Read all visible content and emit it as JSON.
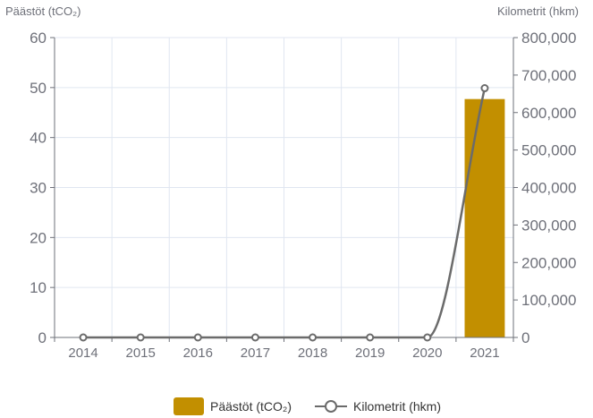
{
  "chart_data": {
    "type": "bar",
    "title": "",
    "categories": [
      "2014",
      "2015",
      "2016",
      "2017",
      "2018",
      "2019",
      "2020",
      "2021"
    ],
    "y_left": {
      "label": "Päästöt (tCO₂)",
      "lim": [
        0,
        60
      ],
      "ticks": [
        0,
        10,
        20,
        30,
        40,
        50,
        60
      ]
    },
    "y_right": {
      "label": "Kilometrit (hkm)",
      "lim": [
        0,
        800000
      ],
      "ticks": [
        "0",
        "100,000",
        "200,000",
        "300,000",
        "400,000",
        "500,000",
        "600,000",
        "700,000",
        "800,000"
      ]
    },
    "series": [
      {
        "name": "Päästöt (tCO₂)",
        "type": "bar",
        "axis": "left",
        "color": "#c28f00",
        "values": [
          0,
          0,
          0,
          0,
          0,
          0,
          0,
          47.7
        ]
      },
      {
        "name": "Kilometrit (hkm)",
        "type": "line",
        "axis": "right",
        "smooth": true,
        "color": "#6b6b6b",
        "values": [
          0,
          0,
          0,
          0,
          0,
          0,
          0,
          665000
        ]
      }
    ],
    "grid": true,
    "legend": {
      "position": "bottom-center"
    }
  }
}
